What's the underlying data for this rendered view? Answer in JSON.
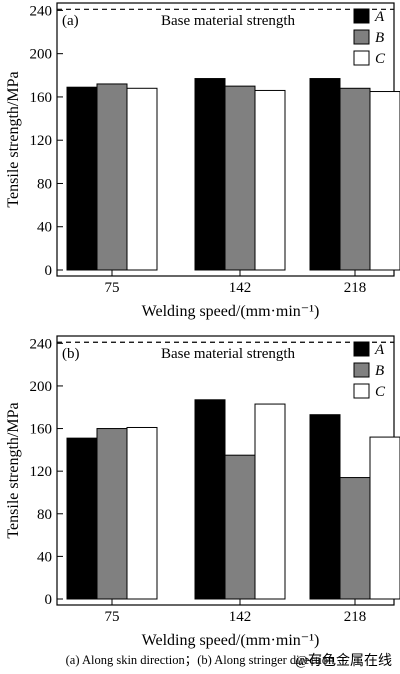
{
  "chart_data": [
    {
      "type": "bar",
      "panel_label": "(a)",
      "categories": [
        "75",
        "142",
        "218"
      ],
      "series": [
        {
          "name": "A",
          "values": [
            169,
            177,
            177
          ],
          "color": "#000000"
        },
        {
          "name": "B",
          "values": [
            172,
            170,
            168
          ],
          "color": "#808080"
        },
        {
          "name": "C",
          "values": [
            168,
            166,
            165
          ],
          "color": "#ffffff"
        }
      ],
      "xlabel": "Welding speed/(mm·min⁻¹)",
      "ylabel": "Tensile strength/MPa",
      "ylim": [
        0,
        245
      ],
      "yticks": [
        "0",
        "40",
        "80",
        "120",
        "160",
        "200",
        "240"
      ],
      "reference_line": {
        "value": 241,
        "label": "Base material strength",
        "style": "dashed"
      },
      "legend_placement": "top-right"
    },
    {
      "type": "bar",
      "panel_label": "(b)",
      "categories": [
        "75",
        "142",
        "218"
      ],
      "series": [
        {
          "name": "A",
          "values": [
            151,
            187,
            173
          ],
          "color": "#000000"
        },
        {
          "name": "B",
          "values": [
            160,
            135,
            114
          ],
          "color": "#808080"
        },
        {
          "name": "C",
          "values": [
            161,
            183,
            152
          ],
          "color": "#ffffff"
        }
      ],
      "xlabel": "Welding speed/(mm·min⁻¹)",
      "ylabel": "Tensile strength/MPa",
      "ylim": [
        0,
        245
      ],
      "yticks": [
        "0",
        "40",
        "80",
        "120",
        "160",
        "200",
        "240"
      ],
      "reference_line": {
        "value": 241,
        "label": "Base material strength",
        "style": "dashed"
      },
      "legend_placement": "top-right"
    }
  ],
  "caption": "(a) Along skin direction；(b) Along stringer direction",
  "watermark": "@有色金属在线"
}
